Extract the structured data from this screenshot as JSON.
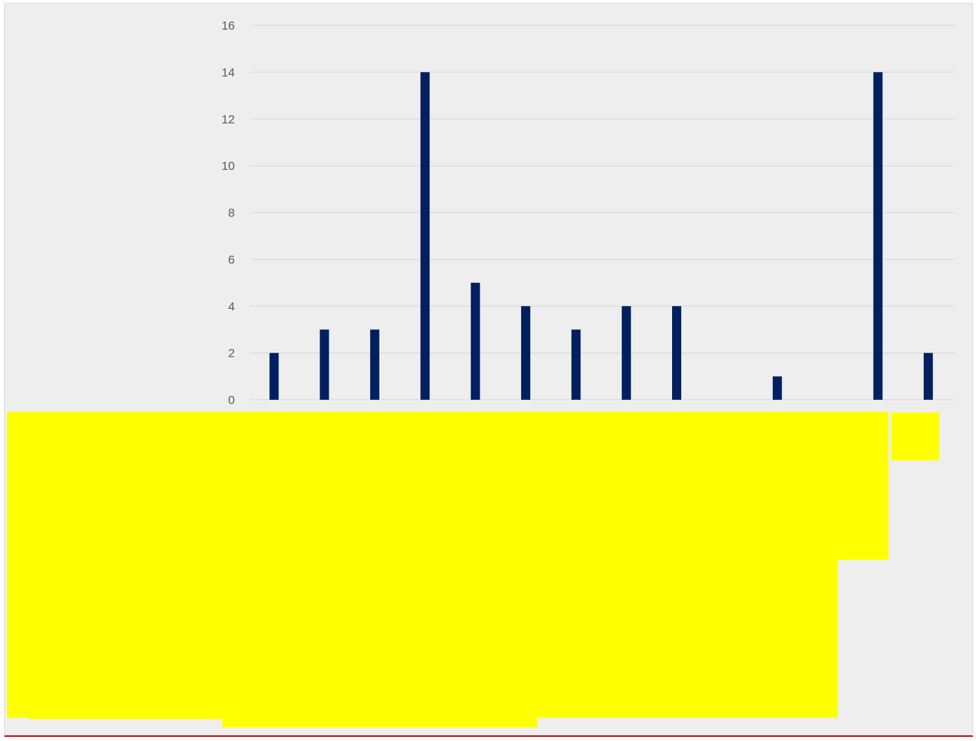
{
  "chart_data": {
    "type": "bar",
    "title": "",
    "xlabel": "",
    "ylabel": "",
    "ylim": [
      0,
      16
    ],
    "yticks": [
      0,
      2,
      4,
      6,
      8,
      10,
      12,
      14,
      16
    ],
    "grid": true,
    "legend": "none",
    "categories": [
      "",
      "",
      "",
      "",
      "",
      "",
      "",
      "",
      "",
      "",
      "",
      "",
      "",
      ""
    ],
    "values": [
      2,
      3,
      3,
      14,
      5,
      4,
      3,
      4,
      4,
      0,
      1,
      0,
      14,
      2
    ],
    "colors": {
      "bar": "#002060",
      "grid": "#d9d9d9",
      "label_highlight": "#ffff00",
      "tick_text": "#595959",
      "plot_background": "#eeeeee"
    }
  }
}
